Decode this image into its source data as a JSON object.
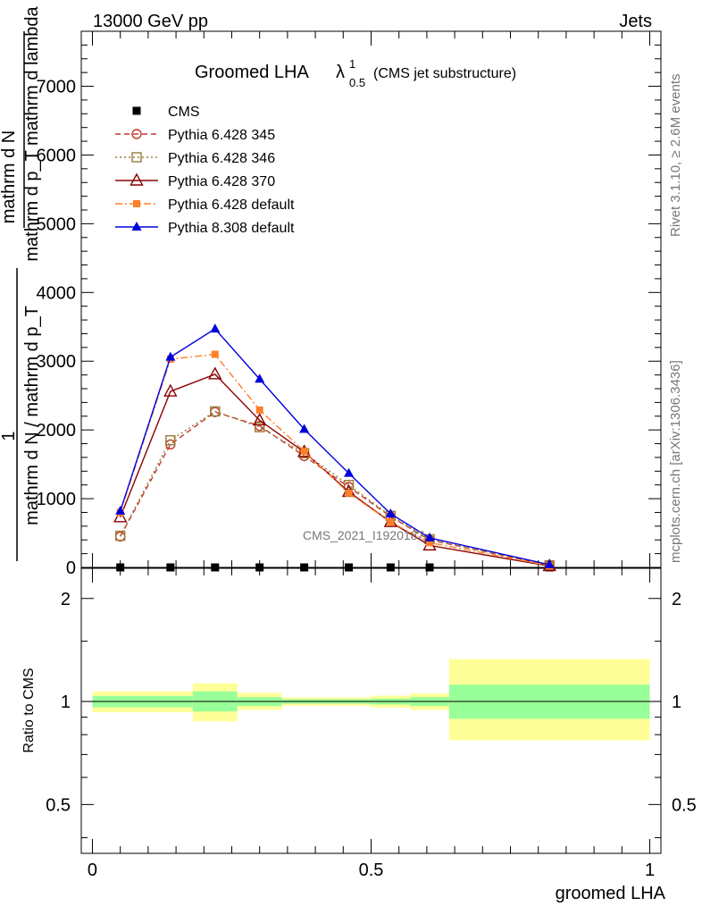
{
  "header": {
    "left": "13000 GeV pp",
    "right": "Jets"
  },
  "title": {
    "main": "Groomed LHA",
    "lambda": "λ",
    "lambda_sup": "1",
    "lambda_sub": "0.5",
    "extra": "(CMS jet substructure)"
  },
  "side_labels": {
    "rivet": "Rivet 3.1.10, ≥ 2.6M events",
    "mcplots": "mcplots.cern.ch [arXiv:1306.3436]"
  },
  "watermark": "CMS_2021_I1920187",
  "y_axis_label": {
    "numerator": "mathrm d N",
    "denominator": "mathrm d p_T mathrm d lambda",
    "prefactor_num": "1",
    "prefactor_den": "mathrm d N / mathrm d p_T"
  },
  "ratio_ylabel": "Ratio to CMS",
  "xlabel": "groomed LHA",
  "chart_data": [
    {
      "type": "line",
      "panel": "main",
      "xlim": [
        -0.02,
        1.02
      ],
      "ylim": [
        0,
        7800
      ],
      "yticks": [
        0,
        1000,
        2000,
        3000,
        4000,
        5000,
        6000,
        7000
      ],
      "ytick_labels": [
        "0",
        "1000",
        "2000",
        "3000",
        "4000",
        "5000",
        "6000",
        "7000"
      ],
      "legend_position": "top-left",
      "series": [
        {
          "name": "CMS",
          "color": "#000000",
          "marker": "square",
          "line": "none",
          "x": [
            0.05,
            0.14,
            0.22,
            0.3,
            0.38,
            0.46,
            0.535,
            0.605,
            0.82
          ],
          "y": [
            0,
            0,
            0,
            0,
            0,
            0,
            0,
            0,
            0
          ]
        },
        {
          "name": "Pythia 6.428 345",
          "color": "#c0392b",
          "marker": "open-circle",
          "line": "dashed",
          "x": [
            0.05,
            0.14,
            0.22,
            0.3,
            0.38,
            0.46,
            0.535,
            0.605,
            0.82
          ],
          "y": [
            450,
            1790,
            2260,
            2060,
            1620,
            1170,
            740,
            400,
            30
          ]
        },
        {
          "name": "Pythia 6.428 346",
          "color": "#9a7a3a",
          "marker": "open-square",
          "line": "dotted",
          "x": [
            0.05,
            0.14,
            0.22,
            0.3,
            0.38,
            0.46,
            0.535,
            0.605,
            0.82
          ],
          "y": [
            460,
            1850,
            2270,
            2040,
            1660,
            1200,
            750,
            410,
            30
          ]
        },
        {
          "name": "Pythia 6.428 370",
          "color": "#8b0000",
          "marker": "open-triangle",
          "line": "solid",
          "x": [
            0.05,
            0.14,
            0.22,
            0.3,
            0.38,
            0.46,
            0.535,
            0.605,
            0.82
          ],
          "y": [
            730,
            2560,
            2810,
            2140,
            1680,
            1100,
            660,
            320,
            20
          ]
        },
        {
          "name": "Pythia 6.428 default",
          "color": "#ff7f2a",
          "marker": "filled-square",
          "line": "dashdot",
          "x": [
            0.05,
            0.14,
            0.22,
            0.3,
            0.38,
            0.46,
            0.535,
            0.605,
            0.82
          ],
          "y": [
            800,
            3030,
            3100,
            2290,
            1690,
            1080,
            660,
            360,
            25
          ]
        },
        {
          "name": "Pythia 8.308 default",
          "color": "#0000dd",
          "marker": "filled-triangle",
          "line": "solid",
          "x": [
            0.05,
            0.14,
            0.22,
            0.3,
            0.38,
            0.46,
            0.535,
            0.605,
            0.82
          ],
          "y": [
            820,
            3060,
            3470,
            2740,
            2010,
            1370,
            780,
            430,
            40
          ]
        }
      ]
    },
    {
      "type": "area",
      "panel": "ratio",
      "xlim": [
        -0.02,
        1.02
      ],
      "ylim": [
        0.36,
        2.45
      ],
      "yscale": "log",
      "yticks": [
        0.5,
        1,
        2
      ],
      "ytick_labels": [
        "0.5",
        "1",
        "2"
      ],
      "xticks": [
        0,
        0.5,
        1
      ],
      "xtick_labels": [
        "0",
        "0.5",
        "1"
      ],
      "reference_line": 1,
      "bands": [
        {
          "x0": 0.0,
          "x1": 0.18,
          "stat_lo": 0.962,
          "stat_hi": 1.038,
          "total_lo": 0.93,
          "total_hi": 1.07
        },
        {
          "x0": 0.18,
          "x1": 0.26,
          "stat_lo": 0.935,
          "stat_hi": 1.07,
          "total_lo": 0.875,
          "total_hi": 1.13
        },
        {
          "x0": 0.26,
          "x1": 0.34,
          "stat_lo": 0.97,
          "stat_hi": 1.03,
          "total_lo": 0.945,
          "total_hi": 1.06
        },
        {
          "x0": 0.34,
          "x1": 0.5,
          "stat_lo": 0.985,
          "stat_hi": 1.015,
          "total_lo": 0.972,
          "total_hi": 1.028
        },
        {
          "x0": 0.5,
          "x1": 0.57,
          "stat_lo": 0.98,
          "stat_hi": 1.02,
          "total_lo": 0.96,
          "total_hi": 1.04
        },
        {
          "x0": 0.57,
          "x1": 0.64,
          "stat_lo": 0.97,
          "stat_hi": 1.03,
          "total_lo": 0.945,
          "total_hi": 1.055
        },
        {
          "x0": 0.64,
          "x1": 1.0,
          "stat_lo": 0.89,
          "stat_hi": 1.12,
          "total_lo": 0.77,
          "total_hi": 1.33
        }
      ],
      "colors": {
        "stat": "#99ff99",
        "total": "#ffff99"
      }
    }
  ]
}
